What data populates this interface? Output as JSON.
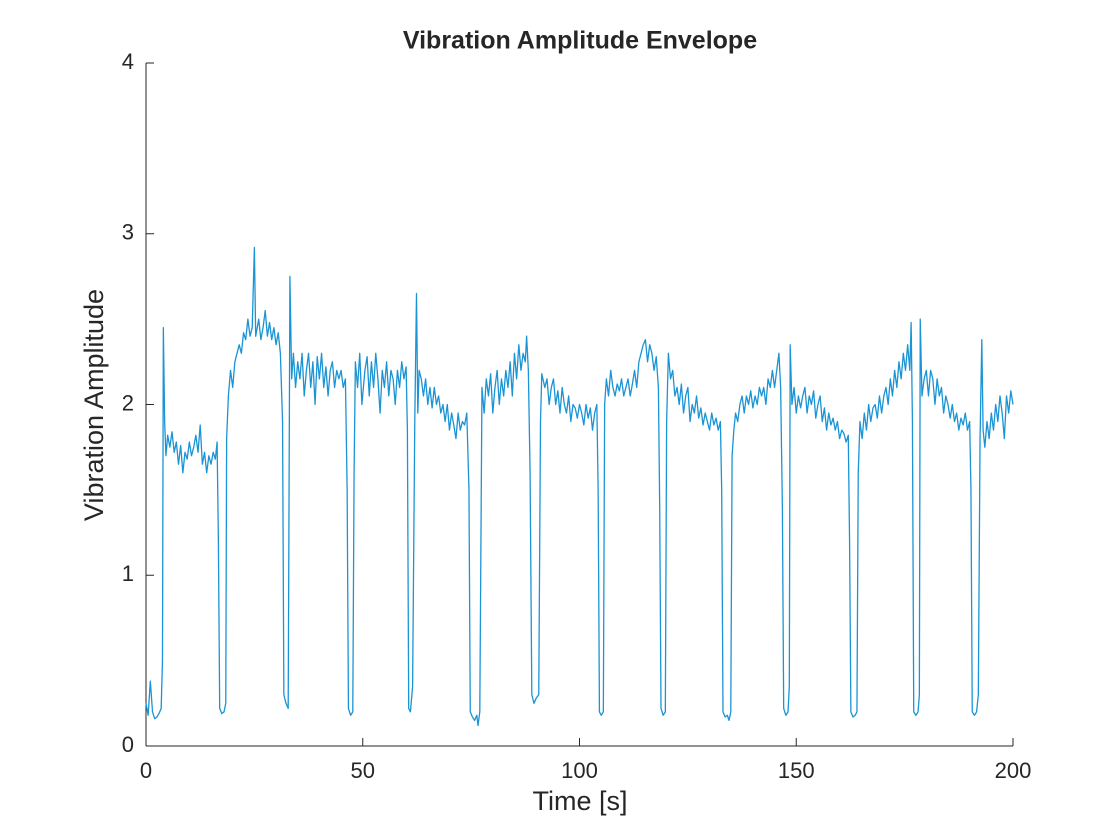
{
  "chart_data": {
    "type": "line",
    "title": "Vibration Amplitude Envelope",
    "x_label": "Time [s]",
    "y_label": "Vibration Amplitude",
    "color": "#1a94d4",
    "xlim": [
      0,
      200
    ],
    "ylim": [
      0,
      4
    ],
    "xticks": [
      0,
      50,
      100,
      150,
      200
    ],
    "yticks": [
      0,
      1,
      2,
      3,
      4
    ],
    "x": [
      0,
      0.5,
      1,
      1.5,
      2,
      2.5,
      3,
      3.5,
      3.8,
      4,
      4.3,
      4.6,
      5,
      5.5,
      6,
      6.5,
      7,
      7.5,
      8,
      8.5,
      9,
      9.5,
      10,
      10.5,
      11,
      11.5,
      12,
      12.5,
      13,
      13.5,
      14,
      14.5,
      15,
      15.5,
      16,
      16.4,
      16.7,
      17,
      17.5,
      18,
      18.4,
      18.6,
      19,
      19.5,
      20,
      20.5,
      21,
      21.5,
      22,
      22.5,
      23,
      23.5,
      24,
      24.5,
      25,
      25.3,
      26,
      26.5,
      27,
      27.5,
      28,
      28.5,
      29,
      29.5,
      30,
      30.5,
      31,
      31.5,
      31.8,
      32.3,
      32.8,
      33.2,
      33.6,
      34,
      34.5,
      35,
      35.5,
      36,
      36.5,
      37,
      37.5,
      38,
      38.5,
      39,
      39.5,
      40,
      40.5,
      41,
      41.5,
      42,
      42.5,
      43,
      43.5,
      44,
      44.5,
      45,
      45.5,
      46,
      46.4,
      46.7,
      47.2,
      47.7,
      48,
      48.3,
      48.8,
      49.3,
      49.8,
      50.5,
      51,
      51.5,
      52,
      52.5,
      53,
      53.5,
      54,
      54.5,
      55,
      55.5,
      56,
      56.5,
      57,
      57.5,
      58,
      58.5,
      59,
      59.5,
      60,
      60.3,
      60.6,
      61,
      61.5,
      62,
      62.4,
      62.7,
      63,
      63.5,
      64,
      64.5,
      65,
      65.5,
      66,
      66.5,
      67,
      67.5,
      68,
      68.5,
      69,
      69.5,
      70,
      70.5,
      71,
      71.5,
      72,
      72.5,
      73,
      73.5,
      74,
      74.5,
      74.8,
      75.3,
      75.8,
      76.3,
      76.6,
      77,
      77.5,
      78,
      78.5,
      79,
      79.5,
      80,
      80.5,
      81,
      81.5,
      82,
      82.5,
      83,
      83.5,
      84,
      84.5,
      85,
      85.5,
      86,
      86.5,
      87,
      87.5,
      87.8,
      88.2,
      88.6,
      89,
      89.5,
      90,
      90.6,
      91,
      91.3,
      92,
      92.5,
      93,
      93.5,
      94,
      94.5,
      95,
      95.5,
      96,
      96.5,
      97,
      97.5,
      98,
      98.5,
      99,
      99.5,
      100,
      100.5,
      101,
      101.5,
      102,
      102.5,
      103,
      103.5,
      104,
      104.3,
      104.6,
      105,
      105.5,
      105.8,
      106.2,
      106.7,
      107.2,
      107.7,
      108.2,
      108.7,
      109.2,
      109.7,
      110.2,
      110.7,
      111.2,
      111.7,
      112.2,
      112.7,
      113.2,
      113.7,
      114.2,
      114.7,
      115.2,
      115.7,
      116.2,
      116.7,
      117.2,
      117.7,
      118.2,
      118.5,
      118.8,
      119.3,
      119.8,
      120.1,
      120.5,
      121,
      121.5,
      122,
      122.5,
      123,
      123.5,
      124,
      124.5,
      125,
      125.5,
      126,
      126.5,
      127,
      127.5,
      128,
      128.5,
      129,
      129.5,
      130,
      130.5,
      131,
      131.5,
      132,
      132.5,
      132.8,
      133.1,
      133.6,
      134.1,
      134.5,
      134.9,
      135.2,
      135.6,
      136,
      136.5,
      137,
      137.5,
      138,
      138.5,
      139,
      139.5,
      140,
      140.5,
      141,
      141.5,
      142,
      142.5,
      143,
      143.5,
      144,
      144.5,
      145,
      145.5,
      146,
      146.4,
      146.8,
      147.1,
      147.6,
      148.1,
      148.4,
      148.6,
      149,
      149.5,
      150,
      150.5,
      151,
      151.5,
      152,
      152.5,
      153,
      153.5,
      154,
      154.5,
      155,
      155.5,
      156,
      156.5,
      157,
      157.5,
      158,
      158.5,
      159,
      159.5,
      160,
      160.5,
      161,
      161.5,
      162,
      162.3,
      162.6,
      163.1,
      163.6,
      164,
      164.3,
      164.7,
      165.2,
      165.7,
      166.2,
      166.7,
      167.2,
      167.7,
      168.2,
      168.7,
      169.2,
      169.7,
      170.2,
      170.7,
      171.2,
      171.7,
      172.2,
      172.7,
      173.2,
      173.7,
      174.2,
      174.7,
      175.2,
      175.7,
      176.2,
      176.5,
      176.8,
      177.1,
      177.6,
      178.1,
      178.4,
      178.6,
      179,
      179.5,
      180,
      180.5,
      181,
      181.5,
      182,
      182.5,
      183,
      183.5,
      184,
      184.5,
      185,
      185.5,
      186,
      186.5,
      187,
      187.5,
      188,
      188.5,
      189,
      189.5,
      190,
      190.3,
      190.6,
      191.1,
      191.6,
      192,
      192.4,
      192.8,
      193.1,
      193.5,
      194,
      194.5,
      195,
      195.5,
      196,
      196.5,
      197,
      197.5,
      198,
      198.5,
      199,
      199.5,
      200
    ],
    "values": [
      0.25,
      0.18,
      0.38,
      0.2,
      0.16,
      0.17,
      0.19,
      0.22,
      0.5,
      2.45,
      1.9,
      1.7,
      1.82,
      1.75,
      1.84,
      1.72,
      1.78,
      1.65,
      1.76,
      1.6,
      1.72,
      1.68,
      1.78,
      1.7,
      1.75,
      1.82,
      1.72,
      1.88,
      1.65,
      1.72,
      1.6,
      1.7,
      1.65,
      1.72,
      1.68,
      1.78,
      1.2,
      0.22,
      0.19,
      0.2,
      0.25,
      1.8,
      2.05,
      2.2,
      2.1,
      2.25,
      2.3,
      2.35,
      2.3,
      2.42,
      2.38,
      2.5,
      2.4,
      2.45,
      2.92,
      2.4,
      2.5,
      2.38,
      2.45,
      2.55,
      2.4,
      2.48,
      2.38,
      2.45,
      2.35,
      2.42,
      2.3,
      1.9,
      0.3,
      0.25,
      0.22,
      2.75,
      2.15,
      2.3,
      2.1,
      2.25,
      2.15,
      2.3,
      2.05,
      2.2,
      2.3,
      2.1,
      2.25,
      2.0,
      2.28,
      2.15,
      2.3,
      2.1,
      2.22,
      2.05,
      2.2,
      2.25,
      2.1,
      2.2,
      2.15,
      2.2,
      2.1,
      2.15,
      1.5,
      0.22,
      0.18,
      0.2,
      1.6,
      2.25,
      2.1,
      2.3,
      2.0,
      2.2,
      2.28,
      2.05,
      2.25,
      2.1,
      2.3,
      2.15,
      1.95,
      2.2,
      2.1,
      2.25,
      2.05,
      2.2,
      2.15,
      2.0,
      2.2,
      2.1,
      2.25,
      2.15,
      2.22,
      1.85,
      0.22,
      0.2,
      0.35,
      1.9,
      2.65,
      1.95,
      2.2,
      2.15,
      2.05,
      2.15,
      2.0,
      2.1,
      1.98,
      2.1,
      2.0,
      2.05,
      1.95,
      2.0,
      1.9,
      2.0,
      1.85,
      1.95,
      1.88,
      1.8,
      1.95,
      1.85,
      1.9,
      1.88,
      1.95,
      1.5,
      0.2,
      0.17,
      0.15,
      0.18,
      0.12,
      0.2,
      2.1,
      1.95,
      2.15,
      2.05,
      2.18,
      1.95,
      2.1,
      2.2,
      2.0,
      2.15,
      2.05,
      2.2,
      2.1,
      2.25,
      2.05,
      2.3,
      2.15,
      2.35,
      2.2,
      2.3,
      2.25,
      2.4,
      2.2,
      1.6,
      0.3,
      0.25,
      0.28,
      0.3,
      1.9,
      2.18,
      2.1,
      2.15,
      2.0,
      2.1,
      2.15,
      2.0,
      2.08,
      1.95,
      2.1,
      2.0,
      1.95,
      2.05,
      1.9,
      2.0,
      1.98,
      1.92,
      2.0,
      1.95,
      1.88,
      2.0,
      1.92,
      1.98,
      1.85,
      1.95,
      2.0,
      1.5,
      0.2,
      0.18,
      0.2,
      2.0,
      2.15,
      2.05,
      2.2,
      2.1,
      2.05,
      2.12,
      2.08,
      2.15,
      2.05,
      2.1,
      2.15,
      2.05,
      2.12,
      2.2,
      2.1,
      2.25,
      2.3,
      2.35,
      2.38,
      2.25,
      2.35,
      2.3,
      2.2,
      2.28,
      2.1,
      1.4,
      0.22,
      0.18,
      0.2,
      1.9,
      2.3,
      2.15,
      2.2,
      2.05,
      2.1,
      2.0,
      2.12,
      1.95,
      2.05,
      2.1,
      1.9,
      2.0,
      1.95,
      2.05,
      1.92,
      1.98,
      1.88,
      1.95,
      1.9,
      1.85,
      1.95,
      1.88,
      1.92,
      1.85,
      1.9,
      1.5,
      0.2,
      0.17,
      0.18,
      0.15,
      0.2,
      1.7,
      1.85,
      1.95,
      1.9,
      2.0,
      2.05,
      1.95,
      2.05,
      2.0,
      2.08,
      1.98,
      2.05,
      2.0,
      2.1,
      2.05,
      2.1,
      2.0,
      2.15,
      2.1,
      2.2,
      2.1,
      2.2,
      2.3,
      2.1,
      1.4,
      0.22,
      0.18,
      0.2,
      0.35,
      2.35,
      2.0,
      2.1,
      1.95,
      2.05,
      1.98,
      2.05,
      2.1,
      1.95,
      2.05,
      2.0,
      2.08,
      1.92,
      2.0,
      2.05,
      1.9,
      1.98,
      1.85,
      1.95,
      1.88,
      1.92,
      1.85,
      1.9,
      1.8,
      1.85,
      1.83,
      1.78,
      1.82,
      1.2,
      0.2,
      0.17,
      0.18,
      0.2,
      1.6,
      1.9,
      1.8,
      1.95,
      1.85,
      2.0,
      1.9,
      1.98,
      2.0,
      1.92,
      2.05,
      1.95,
      2.05,
      2.1,
      2.0,
      2.15,
      2.05,
      2.2,
      2.1,
      2.25,
      2.15,
      2.3,
      2.2,
      2.35,
      2.2,
      2.48,
      1.9,
      0.2,
      0.18,
      0.2,
      0.3,
      2.5,
      2.05,
      2.15,
      2.2,
      2.05,
      2.2,
      2.15,
      2.0,
      2.15,
      2.05,
      2.1,
      1.95,
      2.05,
      2.0,
      1.92,
      2.0,
      1.9,
      1.95,
      1.85,
      1.92,
      1.88,
      1.95,
      1.85,
      1.9,
      1.5,
      0.2,
      0.18,
      0.2,
      0.3,
      1.8,
      2.38,
      1.85,
      1.75,
      1.9,
      1.8,
      1.95,
      1.85,
      2.0,
      1.9,
      2.05,
      1.95,
      1.8,
      2.05,
      1.95,
      2.08,
      2.0
    ]
  }
}
